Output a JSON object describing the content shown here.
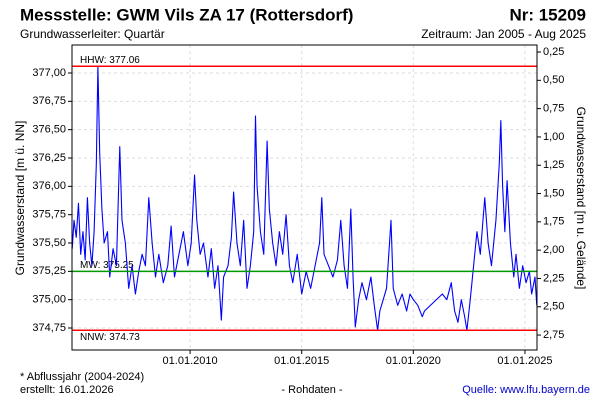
{
  "chart_data": {
    "type": "line",
    "title": "Messstelle: GWM Vils ZA 17 (Rottersdorf)",
    "number": "Nr: 15209",
    "subtitle": "Grundwasserleiter: Quartär",
    "period": "Zeitraum: Jan 2005 - Aug 2025",
    "y_label": "Grundwasserstand [m ü. NN]",
    "y2_label": "Grundwasserstand [m u. Gelände]",
    "footnote": "* Abflussjahr (2004-2024)",
    "created": "erstellt:  16.01.2026",
    "data_kind": "- Rohdaten -",
    "source": "Quelle: www.lfu.bayern.de",
    "color": "#0000ff",
    "grid": true,
    "xlim": [
      2004.71,
      2025.54
    ],
    "xticks": [
      {
        "value": 2010,
        "label": "01.01.2010"
      },
      {
        "value": 2015,
        "label": "01.01.2015"
      },
      {
        "value": 2020,
        "label": "01.01.2020"
      },
      {
        "value": 2025,
        "label": "01.01.2025"
      }
    ],
    "ylim": [
      374.556,
      377.247
    ],
    "yticks": [
      {
        "value": 374.75,
        "label": "374,75"
      },
      {
        "value": 375,
        "label": "375,00"
      },
      {
        "value": 375.25,
        "label": "375,25"
      },
      {
        "value": 375.5,
        "label": "375,50"
      },
      {
        "value": 375.75,
        "label": "375,75"
      },
      {
        "value": 376,
        "label": "376,00"
      },
      {
        "value": 376.25,
        "label": "376,25"
      },
      {
        "value": 376.5,
        "label": "376,50"
      },
      {
        "value": 376.75,
        "label": "376,75"
      },
      {
        "value": 377,
        "label": "377,00"
      }
    ],
    "y2lim": [
      2.882,
      0.188
    ],
    "y2ticks": [
      {
        "value": 0.25,
        "label": "0,25"
      },
      {
        "value": 0.5,
        "label": "0,50"
      },
      {
        "value": 0.75,
        "label": "0,75"
      },
      {
        "value": 1,
        "label": "1,00"
      },
      {
        "value": 1.25,
        "label": "1,25"
      },
      {
        "value": 1.5,
        "label": "1,50"
      },
      {
        "value": 1.75,
        "label": "1,75"
      },
      {
        "value": 2,
        "label": "2,00"
      },
      {
        "value": 2.25,
        "label": "2,25"
      },
      {
        "value": 2.5,
        "label": "2,50"
      },
      {
        "value": 2.75,
        "label": "2,75"
      }
    ],
    "reference_lines": [
      {
        "label": "HHW: 377.06",
        "value": 377.06,
        "color": "#ff0000"
      },
      {
        "label": "MW: 375.25",
        "value": 375.25,
        "color": "#009900"
      },
      {
        "label": "NNW: 374.73",
        "value": 374.73,
        "color": "#ff0000"
      }
    ],
    "x": [
      2004.72,
      2004.8,
      2004.9,
      2005.0,
      2005.1,
      2005.2,
      2005.3,
      2005.4,
      2005.5,
      2005.6,
      2005.7,
      2005.8,
      2005.87,
      2005.95,
      2006.05,
      2006.15,
      2006.3,
      2006.4,
      2006.55,
      2006.7,
      2006.85,
      2006.95,
      2007.1,
      2007.25,
      2007.4,
      2007.55,
      2007.7,
      2007.85,
      2008.0,
      2008.15,
      2008.3,
      2008.45,
      2008.6,
      2008.8,
      2009.0,
      2009.15,
      2009.3,
      2009.5,
      2009.7,
      2009.9,
      2010.05,
      2010.2,
      2010.3,
      2010.45,
      2010.6,
      2010.8,
      2010.95,
      2011.1,
      2011.25,
      2011.4,
      2011.5,
      2011.7,
      2011.85,
      2011.95,
      2012.1,
      2012.25,
      2012.4,
      2012.55,
      2012.7,
      2012.85,
      2012.93,
      2013.0,
      2013.15,
      2013.3,
      2013.45,
      2013.55,
      2013.7,
      2013.85,
      2014.0,
      2014.15,
      2014.3,
      2014.45,
      2014.6,
      2014.8,
      2015.0,
      2015.2,
      2015.4,
      2015.6,
      2015.8,
      2015.9,
      2016.0,
      2016.2,
      2016.4,
      2016.6,
      2016.75,
      2016.9,
      2017.05,
      2017.2,
      2017.3,
      2017.4,
      2017.55,
      2017.7,
      2017.9,
      2018.1,
      2018.25,
      2018.4,
      2018.5,
      2018.65,
      2018.8,
      2019.0,
      2019.1,
      2019.3,
      2019.5,
      2019.7,
      2019.85,
      2020.0,
      2020.2,
      2020.4,
      2020.5,
      2021.3,
      2021.5,
      2021.7,
      2021.85,
      2022.0,
      2022.15,
      2022.3,
      2022.4,
      2022.55,
      2022.7,
      2022.85,
      2023.0,
      2023.2,
      2023.35,
      2023.5,
      2023.7,
      2023.85,
      2023.92,
      2024.0,
      2024.1,
      2024.2,
      2024.35,
      2024.5,
      2024.6,
      2024.75,
      2024.9,
      2025.05,
      2025.2,
      2025.3,
      2025.45,
      2025.53
    ],
    "values": [
      375.45,
      375.7,
      375.55,
      375.85,
      375.4,
      375.6,
      375.35,
      375.9,
      375.5,
      375.3,
      375.6,
      376.2,
      377.06,
      376.3,
      375.8,
      375.5,
      375.6,
      375.2,
      375.45,
      375.3,
      376.35,
      375.7,
      375.5,
      375.1,
      375.3,
      375.05,
      375.25,
      375.4,
      375.3,
      375.9,
      375.5,
      375.2,
      375.4,
      375.15,
      375.3,
      375.65,
      375.2,
      375.4,
      375.6,
      375.3,
      375.5,
      376.1,
      375.7,
      375.4,
      375.5,
      375.2,
      375.45,
      375.1,
      375.3,
      374.82,
      375.2,
      375.3,
      375.55,
      375.95,
      375.5,
      375.3,
      375.7,
      375.1,
      375.3,
      375.6,
      376.62,
      376.0,
      375.6,
      375.4,
      376.4,
      375.8,
      375.5,
      375.3,
      375.6,
      375.4,
      375.75,
      375.3,
      375.15,
      375.4,
      375.05,
      375.25,
      375.1,
      375.3,
      375.5,
      375.9,
      375.4,
      375.3,
      375.2,
      375.35,
      375.7,
      375.3,
      375.1,
      375.8,
      375.2,
      374.76,
      375.0,
      375.15,
      375.0,
      375.2,
      374.95,
      374.73,
      374.9,
      375.0,
      375.1,
      375.7,
      375.1,
      374.95,
      375.05,
      374.9,
      375.05,
      375.0,
      374.95,
      374.85,
      374.9,
      375.05,
      375.0,
      375.15,
      374.9,
      374.8,
      375.0,
      374.85,
      374.73,
      375.0,
      375.3,
      375.6,
      375.4,
      375.9,
      375.5,
      375.3,
      375.7,
      376.2,
      376.58,
      376.0,
      375.6,
      376.05,
      375.5,
      375.2,
      375.4,
      375.1,
      375.3,
      375.15,
      375.25,
      375.05,
      375.2,
      374.95
    ]
  }
}
